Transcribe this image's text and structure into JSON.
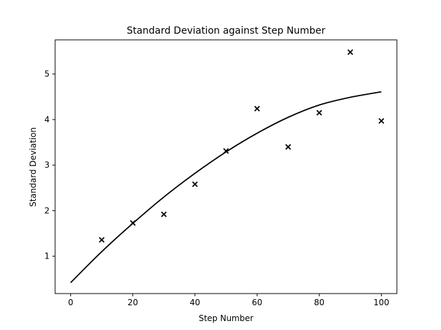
{
  "chart_data": {
    "type": "scatter",
    "title": "Standard Deviation against Step Number",
    "xlabel": "Step Number",
    "ylabel": "Standard Deviation",
    "xlim": [
      -5,
      105
    ],
    "ylim": [
      0.18,
      5.75
    ],
    "xticks": [
      0,
      20,
      40,
      60,
      80,
      100
    ],
    "yticks": [
      1,
      2,
      3,
      4,
      5
    ],
    "grid": false,
    "legend": "none",
    "series": [
      {
        "kind": "scatter",
        "marker": "x",
        "color": "#000000",
        "x": [
          10,
          20,
          30,
          40,
          50,
          60,
          70,
          80,
          90,
          100
        ],
        "y": [
          1.36,
          1.73,
          1.92,
          2.58,
          3.31,
          4.24,
          3.4,
          4.15,
          5.48,
          3.97
        ]
      },
      {
        "kind": "line",
        "color": "#000000",
        "x": [
          0,
          10,
          20,
          30,
          40,
          50,
          60,
          70,
          80,
          90,
          100
        ],
        "y": [
          0.42,
          1.1,
          1.72,
          2.3,
          2.82,
          3.29,
          3.7,
          4.05,
          4.32,
          4.49,
          4.61
        ]
      }
    ]
  }
}
